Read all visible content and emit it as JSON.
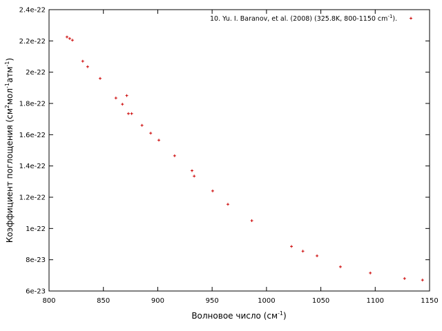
{
  "chart_data": {
    "type": "scatter",
    "xlabel": {
      "main": "Волновое число (см",
      "sup": "-1",
      "tail": ")"
    },
    "ylabel": {
      "p1": "Коэффициент поглощения (см",
      "s1": "2",
      "p2": "мол",
      "s2": "-1",
      "p3": "атм",
      "s3": "-1",
      "p4": ")"
    },
    "xlim": [
      800,
      1150
    ],
    "ylim": [
      6e-23,
      2.4e-22
    ],
    "x_ticks": [
      800,
      850,
      900,
      950,
      1000,
      1050,
      1100,
      1150
    ],
    "x_tick_labels": [
      "800",
      "850",
      "900",
      "950",
      "1000",
      "1050",
      "1100",
      "1150"
    ],
    "y_ticks": [
      6e-23,
      8e-23,
      1e-22,
      1.2e-22,
      1.4e-22,
      1.6e-22,
      1.8e-22,
      2e-22,
      2.2e-22,
      2.4e-22
    ],
    "y_tick_labels": [
      "6e-23",
      "8e-23",
      "1e-22",
      "1.2e-22",
      "1.4e-22",
      "1.6e-22",
      "1.8e-22",
      "2e-22",
      "2.2e-22",
      "2.4e-22"
    ],
    "grid": false,
    "legend_position": "top-right",
    "series": [
      {
        "name": "10. Yu. I. Baranov, et al. (2008) (325.8K, 800-1150 cm-1).",
        "legend": {
          "main": "10. Yu. I. Baranov, et al. (2008) (325.8K, 800-1150 cm",
          "sup": "-1",
          "tail": ")."
        },
        "color": "#cc0000",
        "marker": "plus",
        "points": [
          [
            816.5,
            2.225e-22
          ],
          [
            819.0,
            2.215e-22
          ],
          [
            821.5,
            2.205e-22
          ],
          [
            831.0,
            2.07e-22
          ],
          [
            835.5,
            2.035e-22
          ],
          [
            847.0,
            1.96e-22
          ],
          [
            861.5,
            1.835e-22
          ],
          [
            867.5,
            1.795e-22
          ],
          [
            871.5,
            1.85e-22
          ],
          [
            873.0,
            1.735e-22
          ],
          [
            876.0,
            1.735e-22
          ],
          [
            885.5,
            1.66e-22
          ],
          [
            893.5,
            1.61e-22
          ],
          [
            901.0,
            1.565e-22
          ],
          [
            915.5,
            1.465e-22
          ],
          [
            931.5,
            1.37e-22
          ],
          [
            933.5,
            1.335e-22
          ],
          [
            950.5,
            1.24e-22
          ],
          [
            964.5,
            1.155e-22
          ],
          [
            986.5,
            1.05e-22
          ],
          [
            1023.0,
            8.85e-23
          ],
          [
            1033.5,
            8.55e-23
          ],
          [
            1046.5,
            8.25e-23
          ],
          [
            1068.0,
            7.55e-23
          ],
          [
            1095.5,
            7.15e-23
          ],
          [
            1127.0,
            6.8e-23
          ],
          [
            1143.5,
            6.7e-23
          ]
        ]
      }
    ]
  }
}
